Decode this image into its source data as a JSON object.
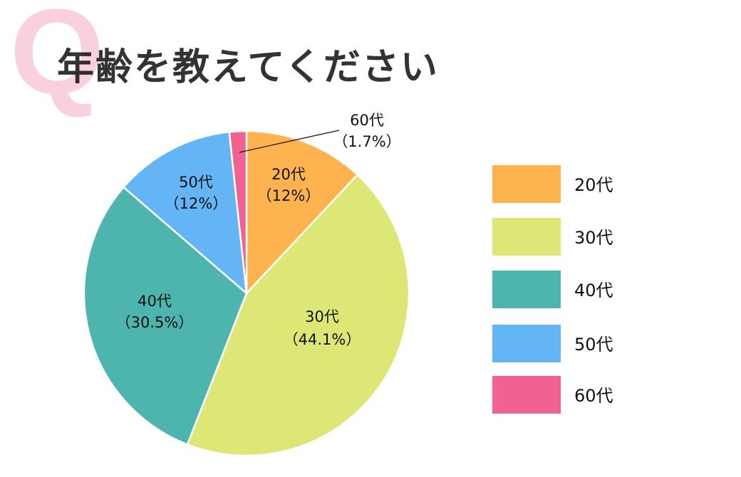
{
  "logo_letter": "Q",
  "title": "年齢を教えてください",
  "chart_data": {
    "type": "pie",
    "start": "top",
    "direction": "clockwise",
    "categories": [
      "20代",
      "30代",
      "40代",
      "50代",
      "60代"
    ],
    "values": [
      12,
      44.1,
      30.5,
      12,
      1.7
    ],
    "labels": [
      "（12%）",
      "（44.1%）",
      "（30.5%）",
      "（12%）",
      "（1.7%）"
    ],
    "colors": [
      "#FFB34F",
      "#DDE776",
      "#4DB5AD",
      "#64B5F6",
      "#F06292"
    ],
    "legend_position": "right"
  }
}
